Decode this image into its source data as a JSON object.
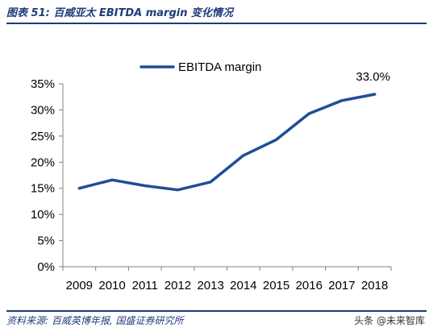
{
  "figure": {
    "title": "图表 51:  百威亚太 EBITDA margin 变化情况",
    "source": "资料来源:  百威英博年报,  国盛证券研究所",
    "watermark": "头条 @未来智库"
  },
  "chart_data": {
    "type": "line",
    "title": "",
    "xlabel": "",
    "ylabel": "",
    "x": [
      "2009",
      "2010",
      "2011",
      "2012",
      "2013",
      "2014",
      "2015",
      "2016",
      "2017",
      "2018"
    ],
    "series": [
      {
        "name": "EBITDA margin",
        "values": [
          0.15,
          0.166,
          0.155,
          0.147,
          0.162,
          0.213,
          0.243,
          0.293,
          0.318,
          0.33
        ],
        "color": "#1f4e96"
      }
    ],
    "ylim": [
      0,
      0.35
    ],
    "yticks": [
      0,
      0.05,
      0.1,
      0.15,
      0.2,
      0.25,
      0.3,
      0.35
    ],
    "ytick_labels": [
      "0%",
      "5%",
      "10%",
      "15%",
      "20%",
      "25%",
      "30%",
      "35%"
    ],
    "annotations": [
      {
        "x": "2018",
        "text": "33.0%"
      }
    ],
    "legend_position": "top-center",
    "grid": false
  }
}
